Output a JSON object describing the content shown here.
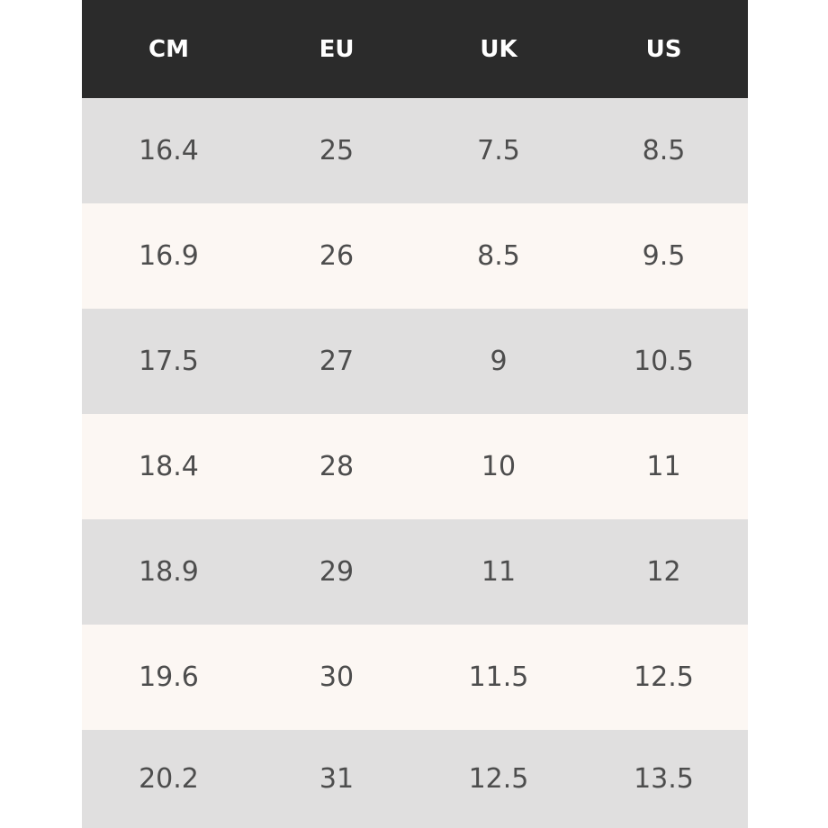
{
  "table": {
    "headers": [
      "CM",
      "EU",
      "UK",
      "US"
    ],
    "rows": [
      [
        "16.4",
        "25",
        "7.5",
        "8.5"
      ],
      [
        "16.9",
        "26",
        "8.5",
        "9.5"
      ],
      [
        "17.5",
        "27",
        "9",
        "10.5"
      ],
      [
        "18.4",
        "28",
        "10",
        "11"
      ],
      [
        "18.9",
        "29",
        "11",
        "12"
      ],
      [
        "19.6",
        "30",
        "11.5",
        "12.5"
      ],
      [
        "20.2",
        "31",
        "12.5",
        "13.5"
      ]
    ]
  },
  "colors": {
    "header_bg": "#2b2b2b",
    "header_text": "#ffffff",
    "row_gray": "#e0dfdf",
    "row_cream": "#fcf7f3",
    "cell_text": "#4d4d4d"
  }
}
